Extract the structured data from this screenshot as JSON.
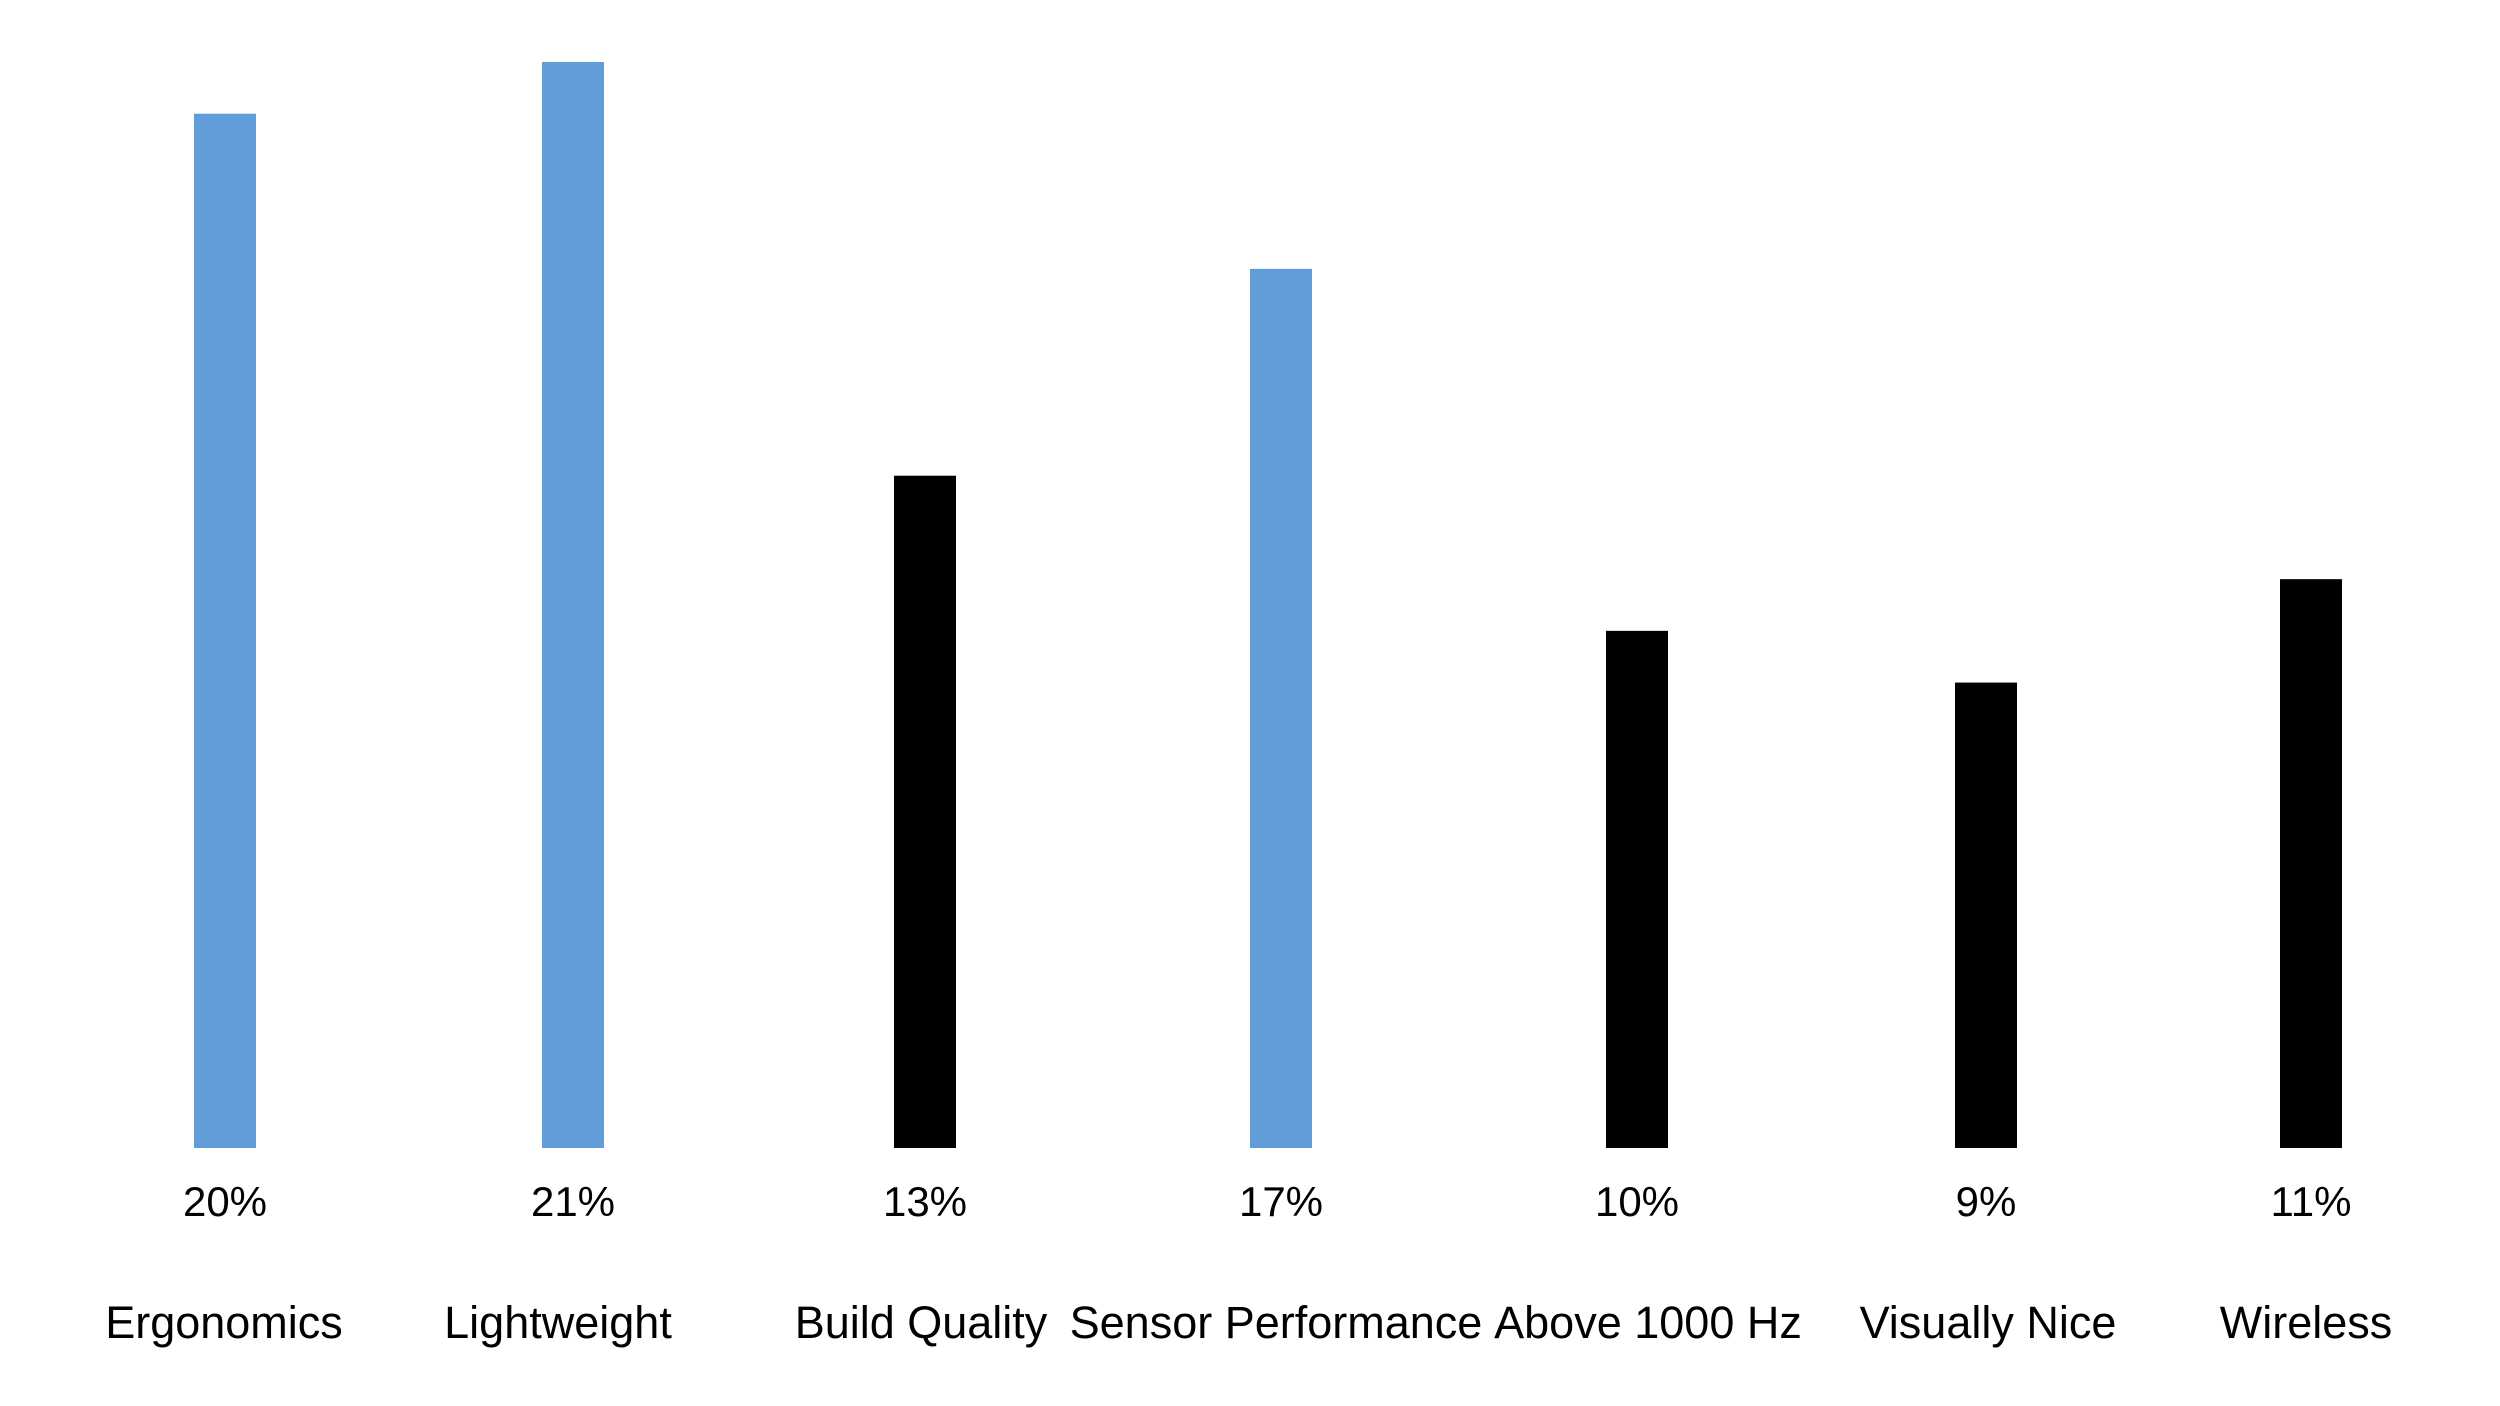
{
  "chart_data": {
    "type": "bar",
    "categories": [
      "Ergonomics",
      "Lightweight",
      "Build Quality",
      "Sensor Performance",
      "Above 1000 Hz",
      "Visually Nice",
      "Wireless"
    ],
    "values": [
      20,
      21,
      13,
      17,
      10,
      9,
      11
    ],
    "value_labels": [
      "20%",
      "21%",
      "13%",
      "17%",
      "10%",
      "9%",
      "11%"
    ],
    "highlighted": [
      true,
      true,
      false,
      true,
      false,
      false,
      false
    ],
    "colors": {
      "highlight": "#619DD9",
      "default": "#000000"
    },
    "ylim": [
      0,
      21
    ],
    "grid": false,
    "legend": false
  }
}
